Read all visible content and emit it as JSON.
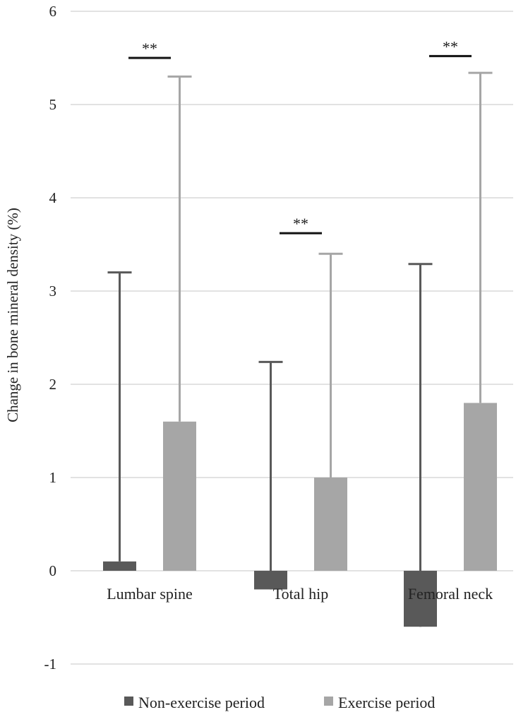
{
  "chart_data": {
    "type": "bar",
    "title": "",
    "xlabel": "",
    "ylabel": "Change  in bone mineral density (%)",
    "ylim": [
      -1,
      6
    ],
    "yticks": [
      -1,
      0,
      1,
      2,
      3,
      4,
      5,
      6
    ],
    "grid": true,
    "legend_position": "bottom",
    "categories": [
      "Lumbar spine",
      "Total hip",
      "Femoral neck"
    ],
    "series": [
      {
        "name": "Non-exercise period",
        "color": "#595959",
        "values": [
          0.1,
          -0.2,
          -0.6
        ],
        "error_upper": [
          3.2,
          2.24,
          3.29
        ]
      },
      {
        "name": "Exercise period",
        "color": "#a6a6a6",
        "values": [
          1.6,
          1.0,
          1.8
        ],
        "error_upper": [
          5.3,
          3.4,
          5.34
        ]
      }
    ],
    "annotations": [
      {
        "category": "Lumbar spine",
        "text": "**",
        "y": 5.5
      },
      {
        "category": "Total hip",
        "text": "**",
        "y": 3.62
      },
      {
        "category": "Femoral neck",
        "text": "**",
        "y": 5.52
      }
    ]
  }
}
